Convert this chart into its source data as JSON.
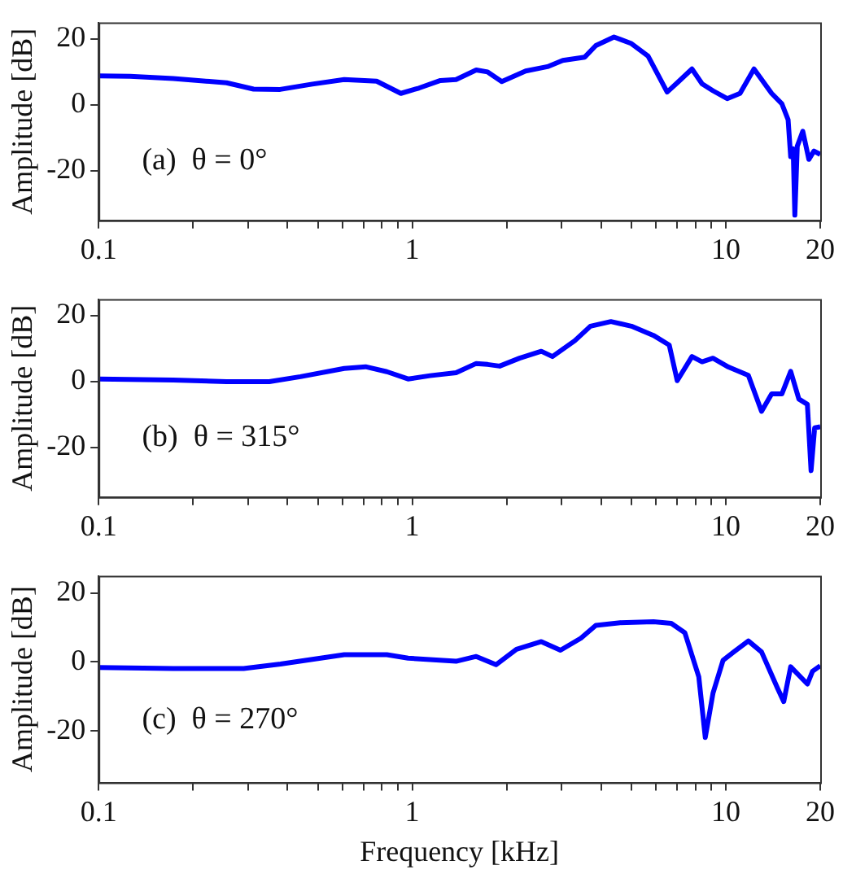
{
  "chart_data": [
    {
      "type": "line",
      "ylabel": "Amplitude [dB]",
      "annotations": [
        "(a)  θ = 0°"
      ],
      "log": "x",
      "xlim": [
        0.1,
        20
      ],
      "ylim": [
        -35,
        25
      ],
      "xticks": [
        0.1,
        {
          "value": 0.2,
          "label": null
        },
        {
          "value": 0.3,
          "label": null
        },
        {
          "value": 0.4,
          "label": null
        },
        {
          "value": 0.5,
          "label": null
        },
        {
          "value": 0.6,
          "label": null
        },
        {
          "value": 0.7,
          "label": null
        },
        {
          "value": 0.8,
          "label": null
        },
        {
          "value": 0.9,
          "label": null
        },
        1,
        {
          "value": 2,
          "label": null
        },
        {
          "value": 3,
          "label": null
        },
        {
          "value": 4,
          "label": null
        },
        {
          "value": 5,
          "label": null
        },
        {
          "value": 6,
          "label": null
        },
        {
          "value": 7,
          "label": null
        },
        {
          "value": 8,
          "label": null
        },
        {
          "value": 9,
          "label": null
        },
        10,
        20
      ],
      "yticks": [
        -20,
        0,
        20
      ],
      "series": [
        {
          "color": "#0000ff",
          "x": [
            0.1,
            0.126,
            0.173,
            0.256,
            0.312,
            0.379,
            0.48,
            0.607,
            0.77,
            0.92,
            1.05,
            1.23,
            1.38,
            1.6,
            1.74,
            1.93,
            2.3,
            2.7,
            3.02,
            3.55,
            3.85,
            4.4,
            5.0,
            5.65,
            6.5,
            7.0,
            7.8,
            8.4,
            9.1,
            10.1,
            11.1,
            12.3,
            14.0,
            15.1,
            15.8,
            16.1,
            16.4,
            16.6,
            16.9,
            17.6,
            18.4,
            19.1,
            20
          ],
          "values": [
            8.8,
            8.7,
            8,
            6.7,
            4.8,
            4.7,
            6.3,
            7.7,
            7.2,
            3.5,
            5.1,
            7.4,
            7.7,
            10.6,
            10,
            7.1,
            10.3,
            11.6,
            13.5,
            14.5,
            18,
            20.6,
            18.6,
            14.8,
            3.9,
            6.7,
            10.9,
            6.4,
            4.3,
            1.9,
            3.5,
            10.9,
            3.5,
            0.3,
            -4.5,
            -15.7,
            -13.3,
            -33.4,
            -12.5,
            -8,
            -16.5,
            -14,
            -15
          ]
        }
      ]
    },
    {
      "type": "line",
      "ylabel": "Amplitude [dB]",
      "annotations": [
        "(b)  θ = 315°"
      ],
      "log": "x",
      "xlim": [
        0.1,
        20
      ],
      "ylim": [
        -35,
        25
      ],
      "xticks": [
        0.1,
        {
          "value": 0.2,
          "label": null
        },
        {
          "value": 0.3,
          "label": null
        },
        {
          "value": 0.4,
          "label": null
        },
        {
          "value": 0.5,
          "label": null
        },
        {
          "value": 0.6,
          "label": null
        },
        {
          "value": 0.7,
          "label": null
        },
        {
          "value": 0.8,
          "label": null
        },
        {
          "value": 0.9,
          "label": null
        },
        1,
        {
          "value": 2,
          "label": null
        },
        {
          "value": 3,
          "label": null
        },
        {
          "value": 4,
          "label": null
        },
        {
          "value": 5,
          "label": null
        },
        {
          "value": 6,
          "label": null
        },
        {
          "value": 7,
          "label": null
        },
        {
          "value": 8,
          "label": null
        },
        {
          "value": 9,
          "label": null
        },
        10,
        20
      ],
      "yticks": [
        -20,
        0,
        20
      ],
      "series": [
        {
          "color": "#0000ff",
          "x": [
            0.1,
            0.173,
            0.256,
            0.35,
            0.44,
            0.607,
            0.71,
            0.83,
            0.97,
            1.14,
            1.38,
            1.6,
            1.74,
            1.9,
            2.2,
            2.58,
            2.8,
            3.3,
            3.7,
            4.3,
            5.0,
            5.88,
            6.6,
            7.0,
            7.8,
            8.4,
            9.1,
            10.2,
            11.8,
            13.0,
            14.0,
            15.1,
            16.1,
            17.1,
            18.2,
            18.7,
            19.2,
            20
          ],
          "values": [
            0.8,
            0.5,
            0,
            0,
            1.5,
            4,
            4.5,
            3,
            0.8,
            1.8,
            2.7,
            5.5,
            5.2,
            4.7,
            7.1,
            9.2,
            7.6,
            12.4,
            16.8,
            18.2,
            16.8,
            14,
            11.1,
            0.3,
            7.6,
            6,
            7.1,
            4.4,
            1.9,
            -9,
            -3.7,
            -3.7,
            3.1,
            -5.3,
            -6.9,
            -27,
            -14,
            -13.7
          ]
        }
      ]
    },
    {
      "type": "line",
      "xlabel": "Frequency [kHz]",
      "ylabel": "Amplitude [dB]",
      "annotations": [
        "(c)  θ = 270°"
      ],
      "log": "x",
      "xlim": [
        0.1,
        20
      ],
      "ylim": [
        -35,
        25
      ],
      "xticks": [
        0.1,
        {
          "value": 0.2,
          "label": null
        },
        {
          "value": 0.3,
          "label": null
        },
        {
          "value": 0.4,
          "label": null
        },
        {
          "value": 0.5,
          "label": null
        },
        {
          "value": 0.6,
          "label": null
        },
        {
          "value": 0.7,
          "label": null
        },
        {
          "value": 0.8,
          "label": null
        },
        {
          "value": 0.9,
          "label": null
        },
        1,
        {
          "value": 2,
          "label": null
        },
        {
          "value": 3,
          "label": null
        },
        {
          "value": 4,
          "label": null
        },
        {
          "value": 5,
          "label": null
        },
        {
          "value": 6,
          "label": null
        },
        {
          "value": 7,
          "label": null
        },
        {
          "value": 8,
          "label": null
        },
        {
          "value": 9,
          "label": null
        },
        10,
        20
      ],
      "yticks": [
        -20,
        0,
        20
      ],
      "series": [
        {
          "color": "#0000ff",
          "x": [
            0.1,
            0.173,
            0.29,
            0.38,
            0.607,
            0.83,
            0.97,
            1.38,
            1.6,
            1.85,
            2.15,
            2.58,
            2.97,
            3.45,
            3.85,
            4.6,
            5.88,
            6.7,
            7.4,
            8.2,
            8.6,
            9.1,
            9.8,
            10.6,
            11.8,
            13.0,
            14.6,
            15.3,
            16.1,
            18.2,
            18.9,
            20
          ],
          "values": [
            -1.6,
            -1.9,
            -1.9,
            -0.6,
            2.1,
            2.1,
            1.1,
            0.2,
            1.6,
            -0.8,
            3.7,
            5.9,
            3.4,
            6.9,
            10.6,
            11.4,
            11.7,
            11.2,
            8.5,
            -4.3,
            -21.9,
            -9.1,
            0.5,
            2.9,
            6.1,
            2.9,
            -7.5,
            -11.5,
            -1.4,
            -6.4,
            -2.7,
            -1.1
          ]
        }
      ]
    }
  ]
}
